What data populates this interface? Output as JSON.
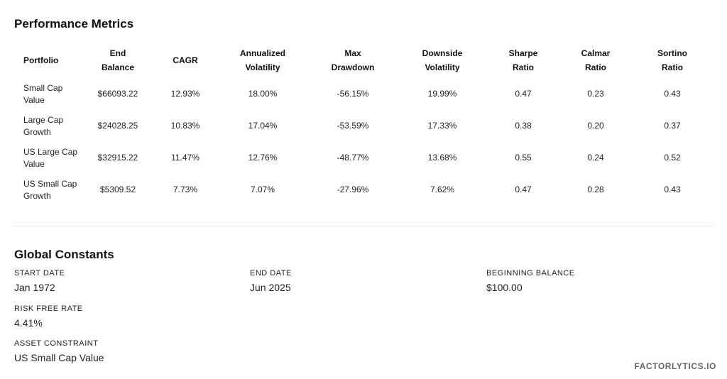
{
  "performance": {
    "title": "Performance Metrics",
    "headers": [
      {
        "line1": "Portfolio",
        "line2": ""
      },
      {
        "line1": "End",
        "line2": "Balance"
      },
      {
        "line1": "CAGR",
        "line2": ""
      },
      {
        "line1": "Annualized",
        "line2": "Volatility"
      },
      {
        "line1": "Max",
        "line2": "Drawdown"
      },
      {
        "line1": "Downside",
        "line2": "Volatility"
      },
      {
        "line1": "Sharpe",
        "line2": "Ratio"
      },
      {
        "line1": "Calmar",
        "line2": "Ratio"
      },
      {
        "line1": "Sortino",
        "line2": "Ratio"
      }
    ],
    "rows": [
      {
        "portfolio_l1": "Small Cap",
        "portfolio_l2": "Value",
        "end_balance": "$66093.22",
        "cagr": "12.93%",
        "volatility": "18.00%",
        "max_drawdown": "-56.15%",
        "downside_volatility": "19.99%",
        "sharpe": "0.47",
        "calmar": "0.23",
        "sortino": "0.43"
      },
      {
        "portfolio_l1": "Large Cap",
        "portfolio_l2": "Growth",
        "end_balance": "$24028.25",
        "cagr": "10.83%",
        "volatility": "17.04%",
        "max_drawdown": "-53.59%",
        "downside_volatility": "17.33%",
        "sharpe": "0.38",
        "calmar": "0.20",
        "sortino": "0.37"
      },
      {
        "portfolio_l1": "US Large Cap",
        "portfolio_l2": "Value",
        "end_balance": "$32915.22",
        "cagr": "11.47%",
        "volatility": "12.76%",
        "max_drawdown": "-48.77%",
        "downside_volatility": "13.68%",
        "sharpe": "0.55",
        "calmar": "0.24",
        "sortino": "0.52"
      },
      {
        "portfolio_l1": "US Small Cap",
        "portfolio_l2": "Growth",
        "end_balance": "$5309.52",
        "cagr": "7.73%",
        "volatility": "7.07%",
        "max_drawdown": "-27.96%",
        "downside_volatility": "7.62%",
        "sharpe": "0.47",
        "calmar": "0.28",
        "sortino": "0.43"
      }
    ]
  },
  "global_constants": {
    "title": "Global Constants",
    "start_date": {
      "label": "START DATE",
      "value": "Jan 1972"
    },
    "end_date": {
      "label": "END DATE",
      "value": "Jun 2025"
    },
    "beginning_balance": {
      "label": "BEGINNING BALANCE",
      "value": "$100.00"
    },
    "risk_free_rate": {
      "label": "RISK FREE RATE",
      "value": "4.41%"
    },
    "asset_constraint": {
      "label": "ASSET CONSTRAINT",
      "value": "US Small Cap Value"
    }
  },
  "brand": {
    "text": "FACTORLYTICS.IO"
  }
}
